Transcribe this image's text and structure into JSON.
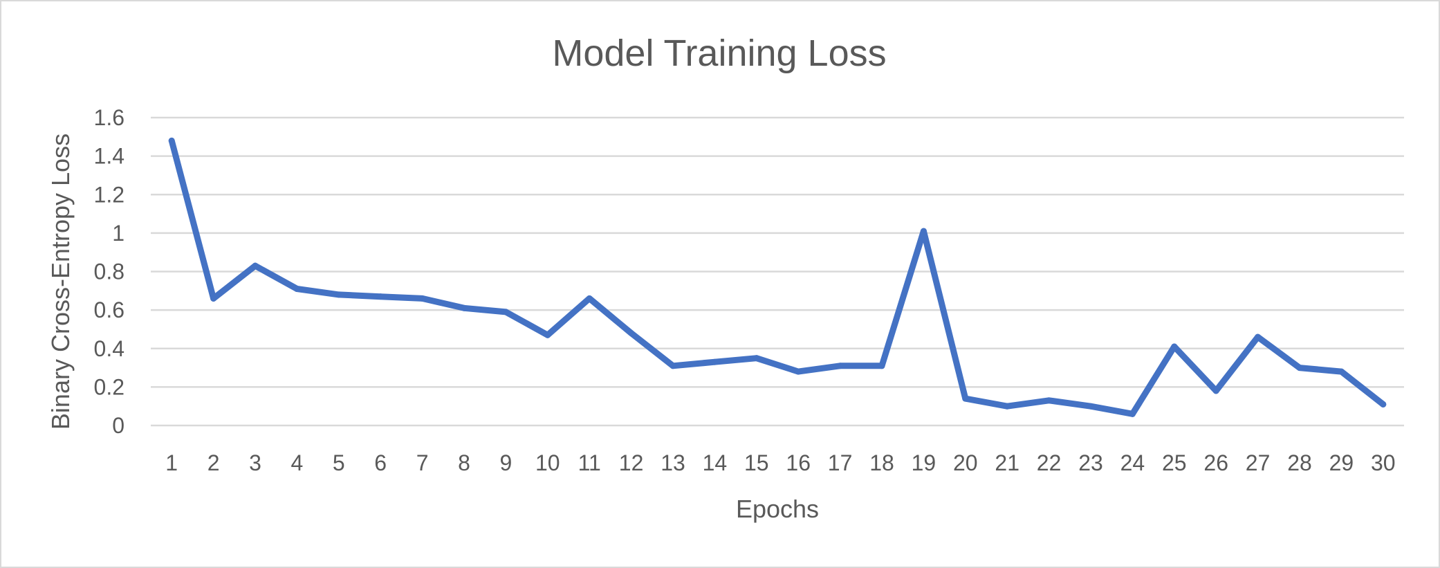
{
  "chart_data": {
    "type": "line",
    "title": "Model Training Loss",
    "xlabel": "Epochs",
    "ylabel": "Binary Cross-Entropy Loss",
    "categories": [
      "1",
      "2",
      "3",
      "4",
      "5",
      "6",
      "7",
      "8",
      "9",
      "10",
      "11",
      "12",
      "13",
      "14",
      "15",
      "16",
      "17",
      "18",
      "19",
      "20",
      "21",
      "22",
      "23",
      "24",
      "25",
      "26",
      "27",
      "28",
      "29",
      "30"
    ],
    "y_ticks": [
      "0",
      "0.2",
      "0.4",
      "0.6",
      "0.8",
      "1",
      "1.2",
      "1.4",
      "1.6"
    ],
    "ylim": [
      0,
      1.6
    ],
    "grid": true,
    "legend": "none",
    "series": [
      {
        "name": "Loss",
        "color": "#4472C4",
        "values": [
          1.48,
          0.66,
          0.83,
          0.71,
          0.68,
          0.67,
          0.66,
          0.61,
          0.59,
          0.47,
          0.66,
          0.48,
          0.31,
          0.33,
          0.35,
          0.28,
          0.31,
          0.31,
          1.01,
          0.14,
          0.1,
          0.13,
          0.1,
          0.06,
          0.41,
          0.18,
          0.46,
          0.3,
          0.28,
          0.11
        ]
      }
    ]
  }
}
